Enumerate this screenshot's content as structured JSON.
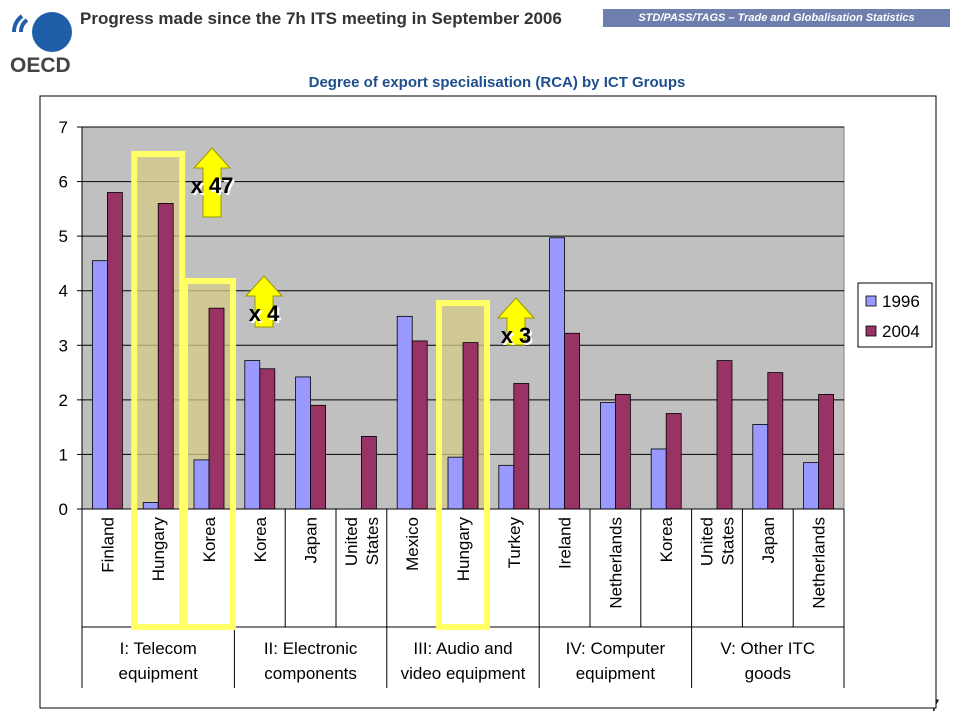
{
  "header": {
    "title": "Progress made since the 7h ITS meeting in September 2006",
    "banner": "STD/PASS/TAGS – Trade and Globalisation Statistics",
    "logo_text": "OECD",
    "page_number": "7"
  },
  "chart_data": {
    "type": "bar",
    "title": "Degree of export specialisation (RCA) by ICT Groups",
    "xlabel": "",
    "ylabel": "",
    "ylim": [
      0,
      7
    ],
    "yticks": [
      "0",
      "1",
      "2",
      "3",
      "4",
      "5",
      "6",
      "7"
    ],
    "grid": true,
    "legend_position": "right",
    "colors": {
      "1996": "#9999ff",
      "2004": "#993366",
      "plot_bg": "#c0c0c0",
      "highlight": "#ffff66"
    },
    "categories": [
      [
        "Finland"
      ],
      [
        "Hungary"
      ],
      [
        "Korea"
      ],
      [
        "Korea"
      ],
      [
        "Japan"
      ],
      [
        "United",
        "States"
      ],
      [
        "Mexico"
      ],
      [
        "Hungary"
      ],
      [
        "Turkey"
      ],
      [
        "Ireland"
      ],
      [
        "Netherlands"
      ],
      [
        "Korea"
      ],
      [
        "United",
        "States"
      ],
      [
        "Japan"
      ],
      [
        "Netherlands"
      ]
    ],
    "series": [
      {
        "name": "1996",
        "values": [
          4.55,
          0.12,
          0.9,
          2.72,
          2.42,
          null,
          3.53,
          0.95,
          0.8,
          4.97,
          1.95,
          1.1,
          null,
          1.55,
          0.85
        ]
      },
      {
        "name": "2004",
        "values": [
          5.8,
          5.6,
          3.68,
          2.57,
          1.9,
          1.33,
          3.08,
          3.05,
          2.3,
          3.22,
          2.1,
          1.75,
          2.72,
          2.5,
          2.1
        ]
      }
    ],
    "groups": [
      {
        "lines": [
          "I: Telecom",
          "equipment"
        ],
        "start": 0,
        "end": 2
      },
      {
        "lines": [
          "II: Electronic",
          "components"
        ],
        "start": 3,
        "end": 5
      },
      {
        "lines": [
          "III: Audio and",
          "video equipment"
        ],
        "start": 6,
        "end": 8
      },
      {
        "lines": [
          "IV: Computer",
          "equipment"
        ],
        "start": 9,
        "end": 11
      },
      {
        "lines": [
          "V: Other ITC",
          "goods"
        ],
        "start": 12,
        "end": 14
      }
    ],
    "annotations": [
      {
        "text": "x 47",
        "category_index": 1
      },
      {
        "text": "x 4",
        "category_index": 2
      },
      {
        "text": "x 3",
        "category_index": 7
      }
    ]
  }
}
